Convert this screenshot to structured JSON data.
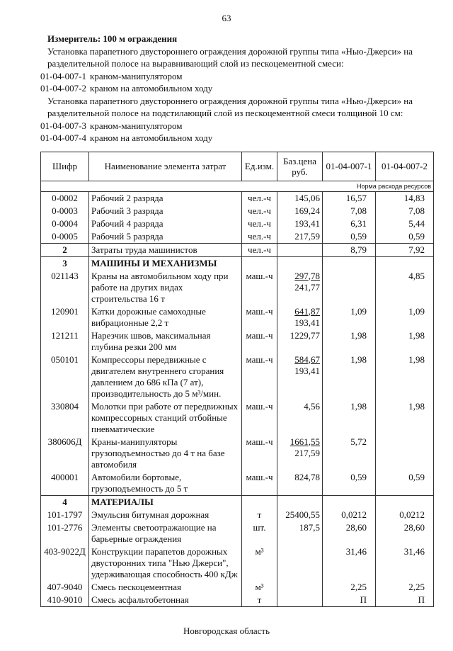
{
  "page_number": "63",
  "meter": "Измеритель: 100 м ограждения",
  "groups": [
    {
      "desc": "Установка парапетного двустороннего ограждения дорожной группы типа «Нью-Джерси» на разделительной полосе  на выравнивающий слой из пескоцементной смеси:",
      "items": [
        {
          "code": "01-04-007-1",
          "text": "краном-манипулятором"
        },
        {
          "code": "01-04-007-2",
          "text": "краном на автомобильном ходу"
        }
      ]
    },
    {
      "desc": "Установка парапетного двустороннего ограждения дорожной группы типа «Нью-Джерси» на разделительной полосе  на подстилающий слой из пескоцементной смеси толщиной 10 см:",
      "items": [
        {
          "code": "01-04-007-3",
          "text": "краном-манипулятором"
        },
        {
          "code": "01-04-007-4",
          "text": "краном на автомобильном ходу"
        }
      ]
    }
  ],
  "table": {
    "headers": [
      "Шифр",
      "Наименование элемента затрат",
      "Ед.изм.",
      "Баз.цена руб.",
      "01-04-007-1",
      "01-04-007-2"
    ],
    "norm_label": "Норма расхода ресурсов",
    "rows": [
      {
        "code": "0-0002",
        "name": "Рабочий 2 разряда",
        "unit": "чел.-ч",
        "price": "145,06",
        "v1": "16,57",
        "v2": "14,83"
      },
      {
        "code": "0-0003",
        "name": "Рабочий 3 разряда",
        "unit": "чел.-ч",
        "price": "169,24",
        "v1": "7,08",
        "v2": "7,08"
      },
      {
        "code": "0-0004",
        "name": "Рабочий 4 разряда",
        "unit": "чел.-ч",
        "price": "193,41",
        "v1": "6,31",
        "v2": "5,44"
      },
      {
        "code": "0-0005",
        "name": "Рабочий 5 разряда",
        "unit": "чел.-ч",
        "price": "217,59",
        "v1": "0,59",
        "v2": "0,59"
      },
      {
        "sep": true,
        "code": "2",
        "name": "Затраты труда машинистов",
        "unit": "чел.-ч",
        "price": "",
        "v1": "8,79",
        "v2": "7,92",
        "bold_code": true
      },
      {
        "sep": true,
        "code": "3",
        "name": "МАШИНЫ И МЕХАНИЗМЫ",
        "section": true
      },
      {
        "code": "021143",
        "name": "Краны на автомобильном ходу при работе на других видах строительства 16 т",
        "unit": "маш.-ч",
        "price": "297,78",
        "price2": "241,77",
        "v1": "",
        "v2": "4,85"
      },
      {
        "code": "120901",
        "name": "Катки дорожные самоходные вибрационные 2,2 т",
        "unit": "маш.-ч",
        "price": "641,87",
        "price2": "193,41",
        "v1": "1,09",
        "v2": "1,09"
      },
      {
        "code": "121211",
        "name": "Нарезчик швов, максимальная глубина резки 200 мм",
        "unit": "маш.-ч",
        "price": "1229,77",
        "v1": "1,98",
        "v2": "1,98"
      },
      {
        "code": "050101",
        "name": "Компрессоры передвижные с двигателем внутреннего сгорания давлением до 686 кПа (7 ат), производительность до 5 м³/мин.",
        "unit": "маш.-ч",
        "price": "584,67",
        "price2": "193,41",
        "v1": "1,98",
        "v2": "1,98"
      },
      {
        "code": "330804",
        "name": "Молотки при работе от передвижных компрессорных станций отбойные пневматические",
        "unit": "маш.-ч",
        "price": "4,56",
        "v1": "1,98",
        "v2": "1,98"
      },
      {
        "code": "380606Д",
        "name": "Краны-манипуляторы грузоподъемностью до 4 т на базе автомобиля",
        "unit": "маш.-ч",
        "price": "1661,55",
        "price2": "217,59",
        "v1": "5,72",
        "v2": ""
      },
      {
        "code": "400001",
        "name": "Автомобили бортовые, грузоподъемность до 5 т",
        "unit": "маш.-ч",
        "price": "824,78",
        "v1": "0,59",
        "v2": "0,59"
      },
      {
        "sep": true,
        "code": "4",
        "name": "МАТЕРИАЛЫ",
        "section": true
      },
      {
        "code": "101-1797",
        "name": "Эмульсия битумная дорожная",
        "unit": "т",
        "price": "25400,55",
        "v1": "0,0212",
        "v2": "0,0212"
      },
      {
        "code": "101-2776",
        "name": "Элементы светоотражающие на барьерные ограждения",
        "unit": "шт.",
        "price": "187,5",
        "v1": "28,60",
        "v2": "28,60"
      },
      {
        "code": "403-9022Д",
        "name": "Конструкции парапетов дорожных двусторонних типа \"Нью Джерси\", удерживающая способность 400 кДж",
        "unit": "м³",
        "price": "",
        "v1": "31,46",
        "v2": "31,46"
      },
      {
        "code": "407-9040",
        "name": "Смесь пескоцементная",
        "unit": "м³",
        "price": "",
        "v1": "2,25",
        "v2": "2,25"
      },
      {
        "code": "410-9010",
        "name": "Смесь асфальтобетонная",
        "unit": "т",
        "price": "",
        "v1": "П",
        "v2": "П"
      }
    ]
  },
  "footer": "Новгородская область"
}
